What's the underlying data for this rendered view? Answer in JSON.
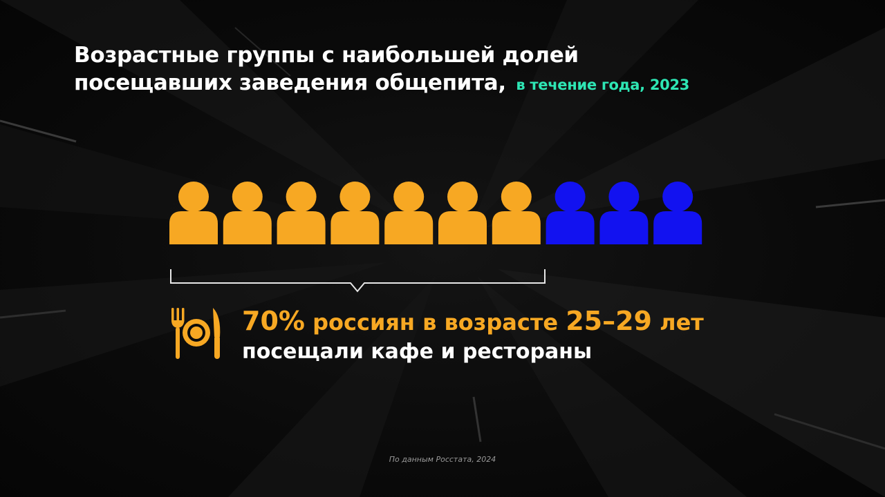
{
  "title": {
    "line1": "Возрастные группы с наибольшей долей",
    "line2": "посещавших заведения общепита,",
    "subtitle": "в течение года, 2023"
  },
  "chart_data": {
    "type": "pictogram",
    "total_icons": 10,
    "highlighted_icons": 7,
    "value_percent": 70,
    "colors": {
      "highlighted": "#f7a823",
      "rest": "#1212f0"
    }
  },
  "stat": {
    "percent": "70%",
    "part1": " россиян в возрасте ",
    "age": "25–29",
    "part2": " лет",
    "line2": "посещали кафе и рестораны"
  },
  "source": "По данным Росстата, 2024",
  "icons": {
    "person": "person-icon",
    "dining": "fork-plate-knife-icon"
  },
  "colors": {
    "accent": "#f7a823",
    "subtitle": "#2ee6b4",
    "secondary": "#1212f0"
  }
}
